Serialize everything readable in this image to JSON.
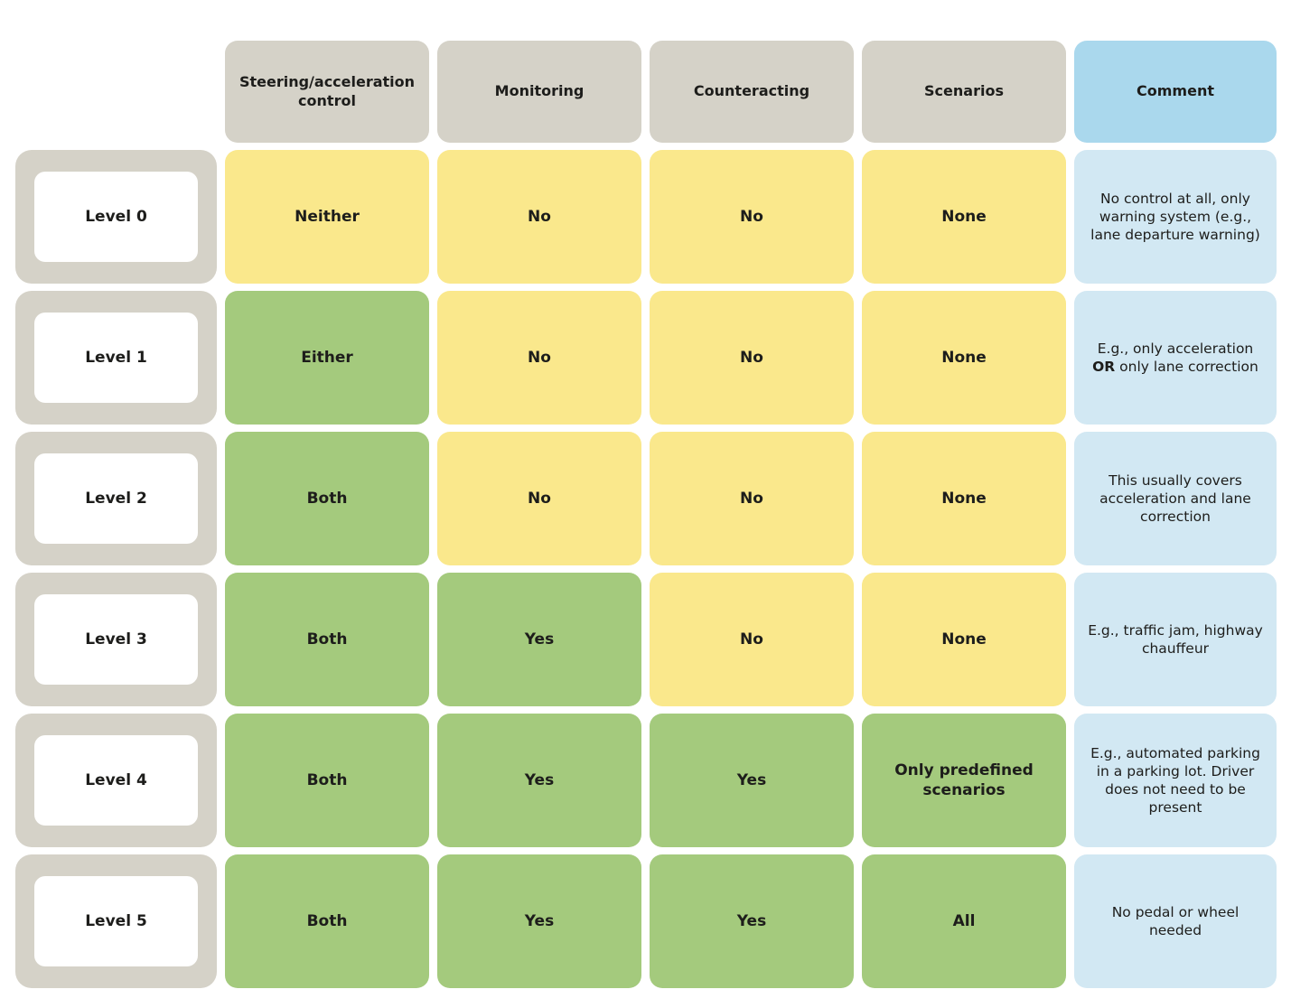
{
  "colors": {
    "header_gray": "#d5d2c8",
    "header_blue": "#aad8ed",
    "comment_blue": "#d2e8f3",
    "level_outer": "#d5d2c8",
    "positive_green": "#a4ca7d",
    "negative_yellow": "#fae88c",
    "text": "#1d1d1b"
  },
  "table": {
    "columns": [
      {
        "key": "steering-acceleration-control",
        "label": "Steering/acceleration control",
        "style": "gray"
      },
      {
        "key": "monitoring",
        "label": "Monitoring",
        "style": "gray"
      },
      {
        "key": "counteracting",
        "label": "Counteracting",
        "style": "gray"
      },
      {
        "key": "scenarios",
        "label": "Scenarios",
        "style": "gray"
      },
      {
        "key": "comment",
        "label": "Comment",
        "style": "blue"
      }
    ],
    "rows": [
      {
        "level": "Level 0",
        "values": [
          {
            "column": "steering-acceleration-control",
            "text": "Neither",
            "state": "negative"
          },
          {
            "column": "monitoring",
            "text": "No",
            "state": "negative"
          },
          {
            "column": "counteracting",
            "text": "No",
            "state": "negative"
          },
          {
            "column": "scenarios",
            "text": "None",
            "state": "negative"
          }
        ],
        "comment_segments": [
          {
            "text": "No control at all, only warning system (e.g., lane departure warning)",
            "bold": false
          }
        ]
      },
      {
        "level": "Level 1",
        "values": [
          {
            "column": "steering-acceleration-control",
            "text": "Either",
            "state": "positive"
          },
          {
            "column": "monitoring",
            "text": "No",
            "state": "negative"
          },
          {
            "column": "counteracting",
            "text": "No",
            "state": "negative"
          },
          {
            "column": "scenarios",
            "text": "None",
            "state": "negative"
          }
        ],
        "comment_segments": [
          {
            "text": "E.g., only acceleration ",
            "bold": false
          },
          {
            "text": "OR",
            "bold": true
          },
          {
            "text": " only lane correction",
            "bold": false
          }
        ]
      },
      {
        "level": "Level 2",
        "values": [
          {
            "column": "steering-acceleration-control",
            "text": "Both",
            "state": "positive"
          },
          {
            "column": "monitoring",
            "text": "No",
            "state": "negative"
          },
          {
            "column": "counteracting",
            "text": "No",
            "state": "negative"
          },
          {
            "column": "scenarios",
            "text": "None",
            "state": "negative"
          }
        ],
        "comment_segments": [
          {
            "text": "This usually covers acceleration and lane correction",
            "bold": false
          }
        ]
      },
      {
        "level": "Level 3",
        "values": [
          {
            "column": "steering-acceleration-control",
            "text": "Both",
            "state": "positive"
          },
          {
            "column": "monitoring",
            "text": "Yes",
            "state": "positive"
          },
          {
            "column": "counteracting",
            "text": "No",
            "state": "negative"
          },
          {
            "column": "scenarios",
            "text": "None",
            "state": "negative"
          }
        ],
        "comment_segments": [
          {
            "text": "E.g., traffic jam, highway chauffeur",
            "bold": false
          }
        ]
      },
      {
        "level": "Level 4",
        "values": [
          {
            "column": "steering-acceleration-control",
            "text": "Both",
            "state": "positive"
          },
          {
            "column": "monitoring",
            "text": "Yes",
            "state": "positive"
          },
          {
            "column": "counteracting",
            "text": "Yes",
            "state": "positive"
          },
          {
            "column": "scenarios",
            "text": "Only predefined scenarios",
            "state": "positive"
          }
        ],
        "comment_segments": [
          {
            "text": "E.g., automated parking in a parking lot. Driver does not need to be present",
            "bold": false
          }
        ]
      },
      {
        "level": "Level 5",
        "values": [
          {
            "column": "steering-acceleration-control",
            "text": "Both",
            "state": "positive"
          },
          {
            "column": "monitoring",
            "text": "Yes",
            "state": "positive"
          },
          {
            "column": "counteracting",
            "text": "Yes",
            "state": "positive"
          },
          {
            "column": "scenarios",
            "text": "All",
            "state": "positive"
          }
        ],
        "comment_segments": [
          {
            "text": "No pedal or wheel needed",
            "bold": false
          }
        ]
      }
    ]
  }
}
